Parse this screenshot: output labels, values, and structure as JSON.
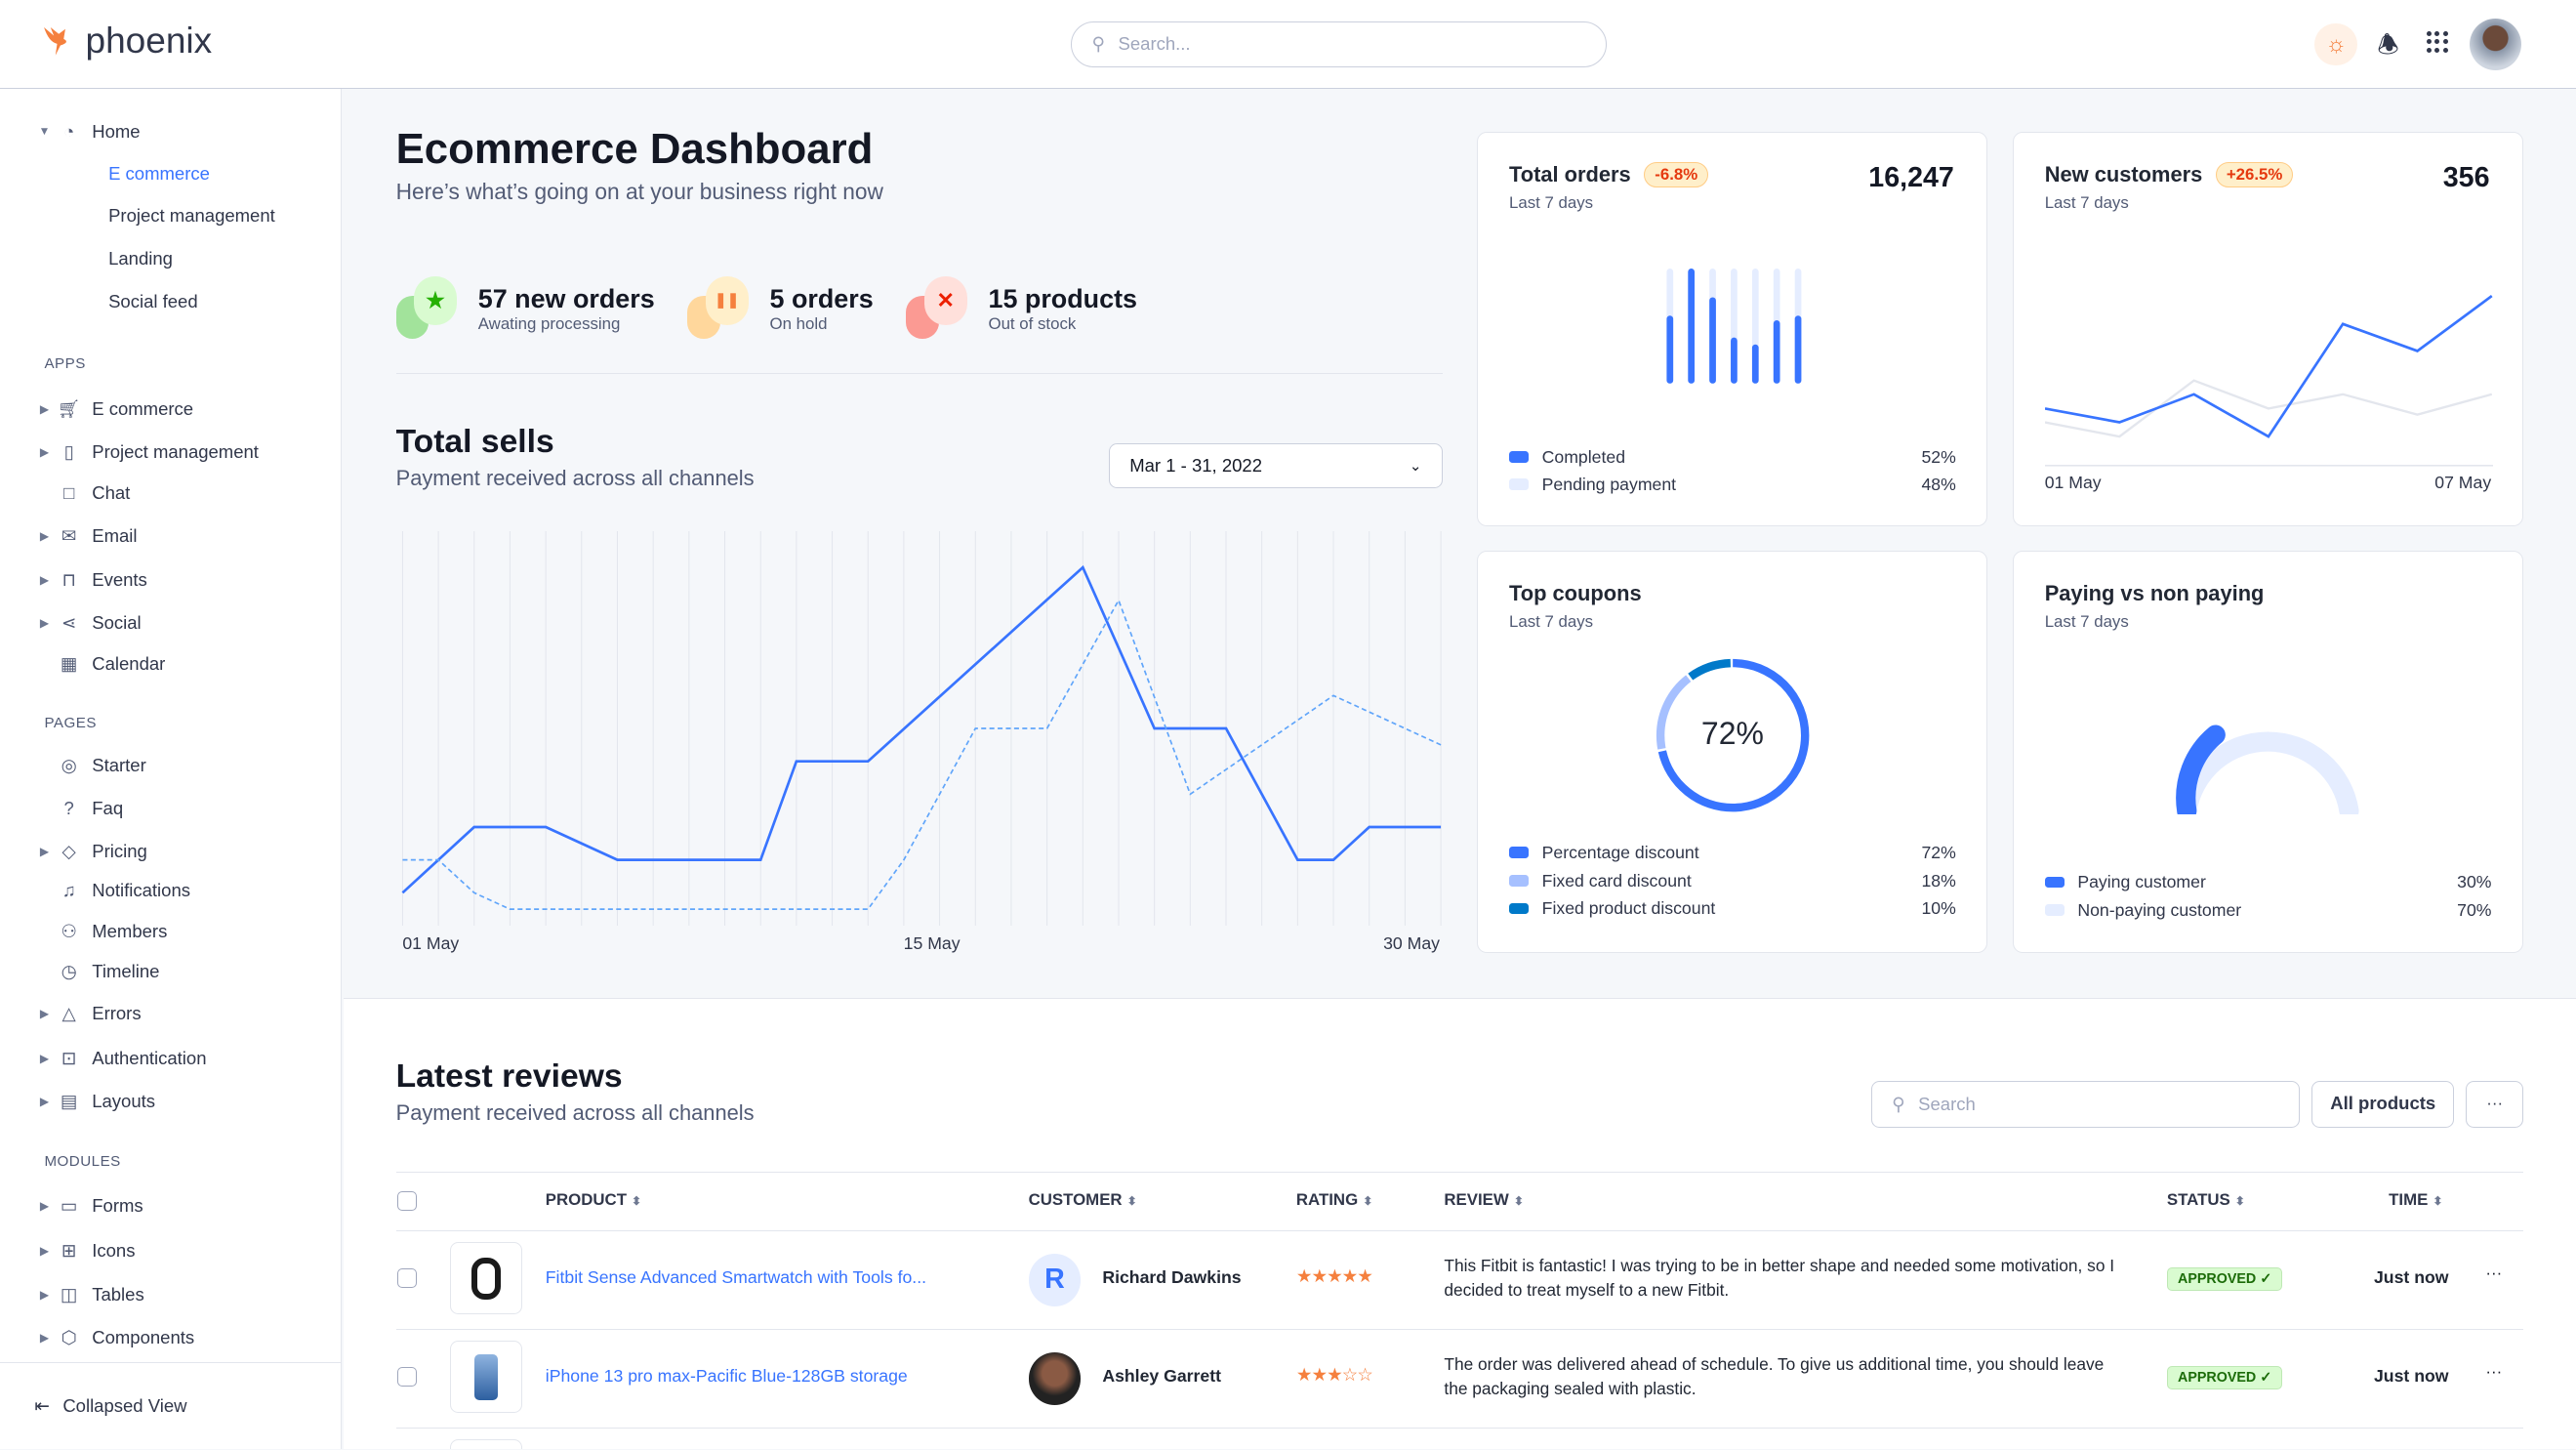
{
  "brand": {
    "name": "phoenix",
    "accent": "#3874ff"
  },
  "topbar": {
    "search_placeholder": "Search...",
    "icons": [
      "sun-icon",
      "bell-icon",
      "apps-grid-icon",
      "user-avatar"
    ]
  },
  "sidebar": {
    "home": {
      "label": "Home",
      "children": [
        "E commerce",
        "Project management",
        "Landing",
        "Social feed"
      ],
      "active": "E commerce"
    },
    "sections": [
      {
        "title": "APPS",
        "items": [
          {
            "label": "E commerce",
            "icon": "cart-icon",
            "expand": true
          },
          {
            "label": "Project management",
            "icon": "clipboard-icon",
            "expand": true
          },
          {
            "label": "Chat",
            "icon": "chat-icon",
            "expand": false
          },
          {
            "label": "Email",
            "icon": "mail-icon",
            "expand": true
          },
          {
            "label": "Events",
            "icon": "bookmark-icon",
            "expand": true
          },
          {
            "label": "Social",
            "icon": "share-icon",
            "expand": true
          },
          {
            "label": "Calendar",
            "icon": "calendar-icon",
            "expand": false
          }
        ]
      },
      {
        "title": "PAGES",
        "items": [
          {
            "label": "Starter",
            "icon": "compass-icon",
            "expand": false
          },
          {
            "label": "Faq",
            "icon": "help-icon",
            "expand": false
          },
          {
            "label": "Pricing",
            "icon": "tag-icon",
            "expand": true
          },
          {
            "label": "Notifications",
            "icon": "bell-icon",
            "expand": false
          },
          {
            "label": "Members",
            "icon": "users-icon",
            "expand": false
          },
          {
            "label": "Timeline",
            "icon": "clock-icon",
            "expand": false
          },
          {
            "label": "Errors",
            "icon": "alert-icon",
            "expand": true
          },
          {
            "label": "Authentication",
            "icon": "lock-icon",
            "expand": true
          },
          {
            "label": "Layouts",
            "icon": "layout-icon",
            "expand": true
          }
        ]
      },
      {
        "title": "MODULES",
        "items": [
          {
            "label": "Forms",
            "icon": "file-icon",
            "expand": true
          },
          {
            "label": "Icons",
            "icon": "grid-icon",
            "expand": true
          },
          {
            "label": "Tables",
            "icon": "columns-icon",
            "expand": true
          },
          {
            "label": "Components",
            "icon": "package-icon",
            "expand": true
          }
        ]
      }
    ],
    "collapse_label": "Collapsed View"
  },
  "header": {
    "title": "Ecommerce Dashboard",
    "subtitle": "Here’s what’s going on at your business right now"
  },
  "stats": [
    {
      "value": "57 new orders",
      "label": "Awating processing",
      "color": "#25b003",
      "icon": "star-icon"
    },
    {
      "value": "5 orders",
      "label": "On hold",
      "color": "#f5803e",
      "icon": "pause-icon"
    },
    {
      "value": "15 products",
      "label": "Out of stock",
      "color": "#ec1f00",
      "icon": "x-icon"
    }
  ],
  "total_sells": {
    "title": "Total sells",
    "subtitle": "Payment received across all channels",
    "date_range": "Mar 1 - 31, 2022",
    "x_labels": [
      "01 May",
      "15 May",
      "30 May"
    ]
  },
  "total_orders": {
    "title": "Total orders",
    "badge": "-6.8%",
    "subtitle": "Last 7 days",
    "value": "16,247",
    "legend": [
      {
        "label": "Completed",
        "value": "52%",
        "color": "#3874ff"
      },
      {
        "label": "Pending payment",
        "value": "48%",
        "color": "#e5edff"
      }
    ]
  },
  "new_customers": {
    "title": "New customers",
    "badge": "+26.5%",
    "subtitle": "Last 7 days",
    "value": "356",
    "x_labels": [
      "01 May",
      "07 May"
    ]
  },
  "top_coupons": {
    "title": "Top coupons",
    "subtitle": "Last 7 days",
    "center": "72%",
    "legend": [
      {
        "label": "Percentage discount",
        "value": "72%",
        "color": "#3874ff"
      },
      {
        "label": "Fixed card discount",
        "value": "18%",
        "color": "#a6c0ff"
      },
      {
        "label": "Fixed product discount",
        "value": "10%",
        "color": "#0079c9"
      }
    ]
  },
  "paying": {
    "title": "Paying vs non paying",
    "subtitle": "Last 7 days",
    "legend": [
      {
        "label": "Paying customer",
        "value": "30%",
        "color": "#3874ff"
      },
      {
        "label": "Non-paying customer",
        "value": "70%",
        "color": "#e5edff"
      }
    ]
  },
  "chart_data": [
    {
      "type": "line",
      "x": "day of May",
      "series": [
        {
          "style": "solid",
          "points": [
            [
              1,
              20
            ],
            [
              3,
              60
            ],
            [
              5,
              60
            ],
            [
              7,
              40
            ],
            [
              11,
              40
            ],
            [
              12,
              100
            ],
            [
              14,
              100
            ],
            [
              20,
              218
            ],
            [
              22,
              120
            ],
            [
              24,
              120
            ],
            [
              26,
              40
            ],
            [
              27,
              40
            ],
            [
              28,
              60
            ],
            [
              30,
              60
            ]
          ]
        },
        {
          "style": "dashed",
          "points": [
            [
              1,
              40
            ],
            [
              2,
              40
            ],
            [
              3,
              20
            ],
            [
              4,
              10
            ],
            [
              14,
              10
            ],
            [
              15,
              40
            ],
            [
              17,
              120
            ],
            [
              19,
              120
            ],
            [
              21,
              198
            ],
            [
              23,
              80
            ],
            [
              27,
              140
            ],
            [
              30,
              110
            ]
          ]
        }
      ],
      "xlim": [
        1,
        30
      ],
      "grid": "vertical"
    },
    {
      "type": "bar",
      "categories": [
        1,
        2,
        3,
        4,
        5,
        6,
        7
      ],
      "values": [
        0.59,
        1.0,
        0.75,
        0.4,
        0.34,
        0.55,
        0.59
      ]
    },
    {
      "type": "line",
      "categories": [
        "01 May",
        "",
        "",
        "",
        "",
        "",
        "07 May"
      ],
      "series": [
        {
          "color": "#3874ff",
          "values": [
            112,
            85,
            140,
            57,
            278,
            225,
            333
          ]
        },
        {
          "color": "#e3e6ed",
          "values": [
            85,
            57,
            167,
            112,
            140,
            100,
            140
          ]
        }
      ]
    },
    {
      "type": "pie",
      "values": [
        72,
        18,
        10
      ]
    },
    {
      "type": "pie",
      "values": [
        30,
        70
      ]
    }
  ],
  "reviews": {
    "title": "Latest reviews",
    "subtitle": "Payment received across all channels",
    "search_placeholder": "Search",
    "filter_label": "All products",
    "more_label": "···",
    "columns": [
      "PRODUCT",
      "CUSTOMER",
      "RATING",
      "REVIEW",
      "STATUS",
      "TIME"
    ],
    "rows": [
      {
        "product": "Fitbit Sense Advanced Smartwatch with Tools fo...",
        "customer": "Richard Dawkins",
        "initial": "R",
        "rating": 5,
        "review": "This Fitbit is fantastic! I was trying to be in better shape and needed some motivation, so I decided to treat myself to a new Fitbit.",
        "status": "APPROVED",
        "time": "Just now"
      },
      {
        "product": "iPhone 13 pro max-Pacific Blue-128GB storage",
        "customer": "Ashley Garrett",
        "initial": "",
        "rating": 3,
        "review": "The order was delivered ahead of schedule. To give us additional time, you should leave the packaging sealed with plastic.",
        "status": "APPROVED",
        "time": "Just now"
      }
    ]
  }
}
